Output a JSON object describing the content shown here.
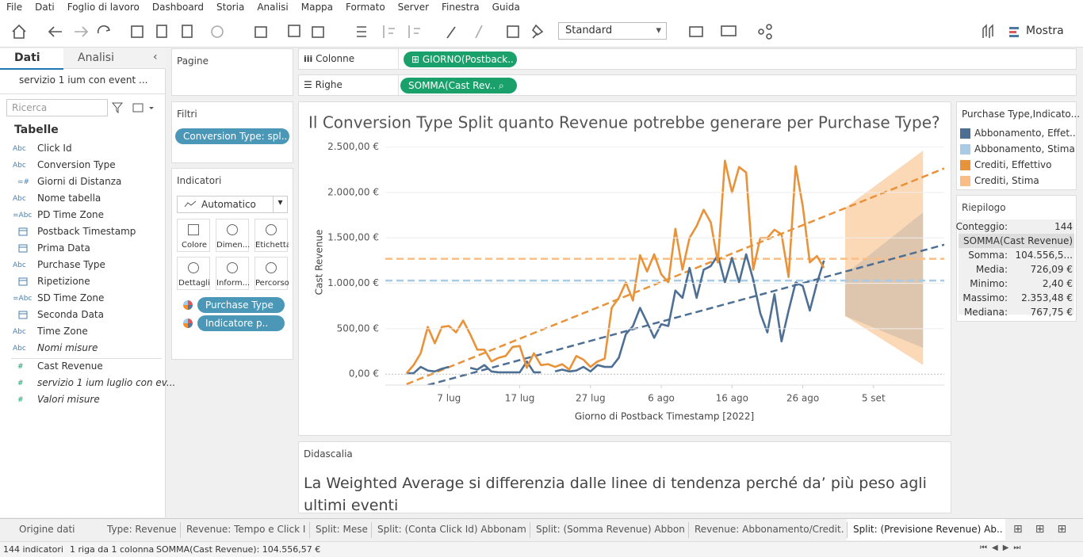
{
  "menu": [
    "File",
    "Dati",
    "Foglio di lavoro",
    "Dashboard",
    "Storia",
    "Analisi",
    "Mappa",
    "Formato",
    "Server",
    "Finestra",
    "Guida"
  ],
  "toolbar": {
    "fit": "Standard",
    "show": "Mostra"
  },
  "sidebar": {
    "tabs": [
      "Dati",
      "Analisi"
    ],
    "datasource": "servizio 1 ium con event ...",
    "search_placeholder": "Ricerca",
    "tables_title": "Tabelle",
    "dimensions": [
      {
        "icon": "Abc",
        "name": "Click Id"
      },
      {
        "icon": "Abc",
        "name": "Conversion Type"
      },
      {
        "icon": "=#",
        "name": "Giorni di Distanza"
      },
      {
        "icon": "Abc",
        "name": "Nome tabella"
      },
      {
        "icon": "=Abc",
        "name": "PD Time Zone"
      },
      {
        "name": "Postback Timestamp"
      },
      {
        "name": "Prima Data"
      },
      {
        "icon": "Abc",
        "name": "Purchase Type"
      },
      {
        "name": "Ripetizione"
      },
      {
        "icon": "=Abc",
        "name": "SD Time Zone"
      },
      {
        "name": "Seconda Data"
      },
      {
        "icon": "Abc",
        "name": "Time Zone"
      },
      {
        "icon": "Abc",
        "name": "Nomi misure",
        "italic": true
      }
    ],
    "measures": [
      {
        "icon": "#",
        "name": "Cast Revenue"
      },
      {
        "icon": "#",
        "name": "servizio 1 ium luglio con ev...",
        "italic": true
      },
      {
        "icon": "#",
        "name": "Valori misure",
        "italic": true
      }
    ]
  },
  "pages": {
    "title": "Pagine"
  },
  "filters": {
    "title": "Filtri",
    "pills": [
      "Conversion Type: spl.."
    ]
  },
  "marks": {
    "title": "Indicatori",
    "mark_type": "Automatico",
    "buttons": [
      "Colore",
      "Dimen...",
      "Etichetta",
      "Dettagli",
      "Inform...",
      "Percorso"
    ],
    "pills": [
      "Purchase Type",
      "Indicatore p.."
    ]
  },
  "shelves": {
    "columns": {
      "label": "Colonne",
      "pill": "GIORNO(Postback.."
    },
    "rows": {
      "label": "Righe",
      "pill": "SOMMA(Cast Rev.."
    }
  },
  "chart_data": {
    "type": "line",
    "title": "Il Conversion Type Split quanto Revenue potrebbe generare per Purchase Type?",
    "x_label": "Giorno di Postback Timestamp [2022]",
    "y_label": "Cast Revenue",
    "legend_title": "Purchase Type,Indicato...",
    "grid": true,
    "x": [
      "2022-07-01",
      "2022-07-02",
      "2022-07-03",
      "2022-07-04",
      "2022-07-05",
      "2022-07-06",
      "2022-07-07",
      "2022-07-08",
      "2022-07-09",
      "2022-07-10",
      "2022-07-11",
      "2022-07-12",
      "2022-07-13",
      "2022-07-14",
      "2022-07-15",
      "2022-07-16",
      "2022-07-17",
      "2022-07-18",
      "2022-07-19",
      "2022-07-20",
      "2022-07-21",
      "2022-07-22",
      "2022-07-23",
      "2022-07-24",
      "2022-07-25",
      "2022-07-26",
      "2022-07-27",
      "2022-07-28",
      "2022-07-29",
      "2022-07-30",
      "2022-07-31",
      "2022-08-01",
      "2022-08-02",
      "2022-08-03",
      "2022-08-04",
      "2022-08-05",
      "2022-08-06",
      "2022-08-07",
      "2022-08-08",
      "2022-08-09",
      "2022-08-10",
      "2022-08-11",
      "2022-08-12",
      "2022-08-13",
      "2022-08-14",
      "2022-08-15",
      "2022-08-16",
      "2022-08-17",
      "2022-08-18",
      "2022-08-19",
      "2022-08-20",
      "2022-08-21",
      "2022-08-22",
      "2022-08-23",
      "2022-08-24",
      "2022-08-25",
      "2022-08-26",
      "2022-08-27",
      "2022-08-28",
      "2022-08-29"
    ],
    "series": [
      {
        "name": "Abbonamento, Effet..",
        "color": "#4e6f94",
        "values": [
          10,
          10,
          80,
          40,
          30,
          60,
          80,
          null,
          null,
          70,
          50,
          100,
          30,
          20,
          20,
          20,
          20,
          140,
          20,
          20,
          null,
          30,
          50,
          30,
          40,
          80,
          30,
          100,
          80,
          80,
          180,
          440,
          530,
          730,
          570,
          400,
          550,
          530,
          920,
          840,
          1170,
          840,
          1150,
          1190,
          1310,
          1010,
          1280,
          1010,
          1320,
          1040,
          670,
          460,
          880,
          360,
          700,
          1010,
          970,
          700,
          1000,
          1250
        ]
      },
      {
        "name": "Crediti, Effettivo",
        "color": "#e8923a",
        "values": [
          10,
          100,
          230,
          520,
          340,
          520,
          530,
          460,
          590,
          440,
          270,
          270,
          140,
          180,
          200,
          300,
          310,
          70,
          230,
          100,
          110,
          80,
          110,
          50,
          200,
          160,
          80,
          140,
          170,
          730,
          840,
          1010,
          810,
          1310,
          1130,
          1320,
          1100,
          1010,
          1600,
          1150,
          1500,
          1630,
          1810,
          1670,
          1230,
          2350,
          2000,
          2280,
          2220,
          1150,
          1500,
          1500,
          1590,
          1540,
          1070,
          2290,
          1850,
          1230,
          1300,
          1170
        ]
      }
    ],
    "forecast": [
      {
        "name": "Abbonamento, Stima",
        "color": "#a9cbe6",
        "x": [
          "2022-09-01",
          "2022-09-12"
        ],
        "lower": [
          640,
          290
        ],
        "upper": [
          1100,
          1780
        ]
      },
      {
        "name": "Crediti, Stima",
        "color": "#f9be86",
        "x": [
          "2022-09-01",
          "2022-09-12"
        ],
        "lower": [
          640,
          100
        ],
        "upper": [
          1830,
          2460
        ]
      }
    ],
    "trend_lines": [
      {
        "color": "#4e6f94",
        "x": [
          "2022-07-04",
          "2022-09-15"
        ],
        "values": [
          -120,
          1425
        ]
      },
      {
        "color": "#e8923a",
        "x": [
          "2022-07-01",
          "2022-09-15"
        ],
        "values": [
          -110,
          2265
        ]
      }
    ],
    "average_lines": [
      {
        "color": "#a9cbe6",
        "value": 1030
      },
      {
        "color": "#f9be86",
        "value": 1270
      }
    ],
    "xlim": [
      "2022-06-28",
      "2022-09-15"
    ],
    "xticks": [
      {
        "value": "2022-07-07",
        "label": "7 lug"
      },
      {
        "value": "2022-07-17",
        "label": "17 lug"
      },
      {
        "value": "2022-07-27",
        "label": "27 lug"
      },
      {
        "value": "2022-08-06",
        "label": "6 ago"
      },
      {
        "value": "2022-08-16",
        "label": "16 ago"
      },
      {
        "value": "2022-08-26",
        "label": "26 ago"
      },
      {
        "value": "2022-09-05",
        "label": "5 set"
      }
    ],
    "ylim": [
      -120,
      2540
    ],
    "yticks": [
      {
        "value": 0,
        "label": "0,00 €"
      },
      {
        "value": 500,
        "label": "500,00 €"
      },
      {
        "value": 1000,
        "label": "1.000,00 €"
      },
      {
        "value": 1500,
        "label": "1.500,00 €"
      },
      {
        "value": 2000,
        "label": "2.000,00 €"
      },
      {
        "value": 2500,
        "label": "2.500,00 €"
      }
    ]
  },
  "summary": {
    "title": "Riepilogo",
    "count": {
      "label": "Conteggio:",
      "value": "144"
    },
    "measure": "SOMMA(Cast Revenue)",
    "stats": [
      {
        "label": "Somma:",
        "value": "104.556,5..."
      },
      {
        "label": "Media:",
        "value": "726,09 €"
      },
      {
        "label": "Minimo:",
        "value": "2,40 €"
      },
      {
        "label": "Massimo:",
        "value": "2.353,48 €"
      },
      {
        "label": "Mediana:",
        "value": "767,75 €"
      }
    ]
  },
  "caption": {
    "title": "Didascalia",
    "text": "La Weighted Average si differenzia dalle linee di tendenza perché da’ più peso agli ultimi eventi"
  },
  "tabs": [
    "Origine dati",
    "Type: Revenue",
    "Revenue: Tempo e Click Id",
    "Split: Mese",
    "Split: (Conta Click Id) Abbonam...",
    "Split: (Somma Revenue) Abbon...",
    "Revenue: Abbonamento/Credit...",
    "Split: (Previsione Revenue) Ab..."
  ],
  "status": [
    "144 indicatori",
    "1 riga da 1 colonna",
    "SOMMA(Cast Revenue): 104.556,57 €"
  ]
}
